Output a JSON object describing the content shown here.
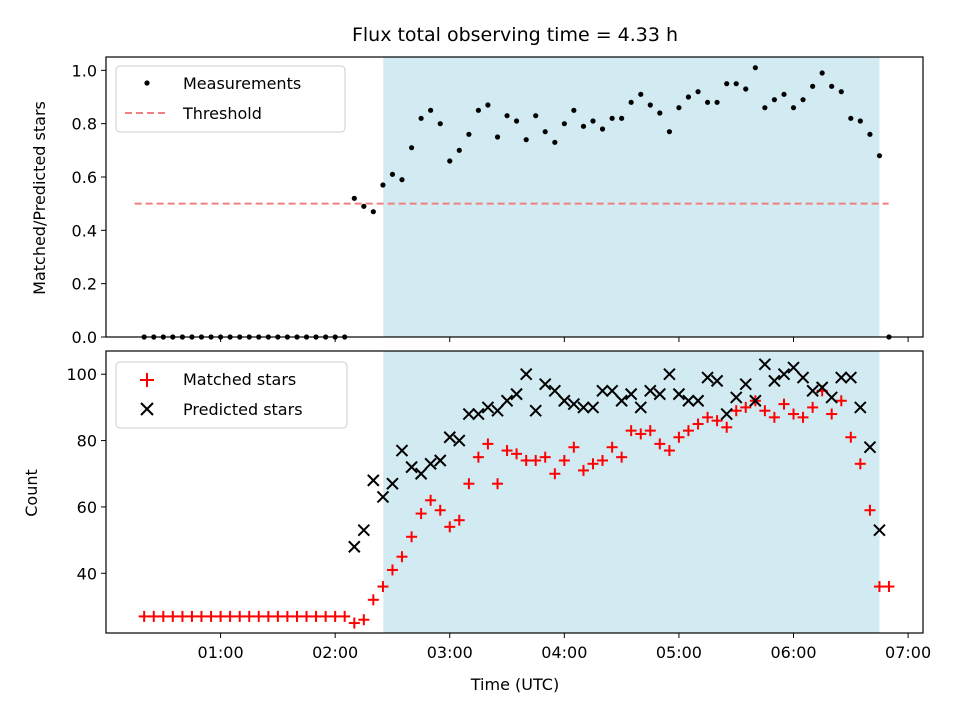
{
  "chart_data": [
    {
      "type": "scatter",
      "title": "Flux total observing time = 4.33 h",
      "ylabel": "Matched/Predicted stars",
      "ylim": [
        0,
        1.05
      ],
      "yticks": [
        "0.0",
        "0.2",
        "0.4",
        "0.6",
        "0.8",
        "1.0"
      ],
      "x_hours": [
        0.333,
        0.417,
        0.5,
        0.583,
        0.667,
        0.75,
        0.833,
        0.917,
        1.0,
        1.083,
        1.167,
        1.25,
        1.333,
        1.417,
        1.5,
        1.583,
        1.667,
        1.75,
        1.833,
        1.917,
        2.0,
        2.083,
        2.167,
        2.25,
        2.333,
        2.417,
        2.5,
        2.583,
        2.667,
        2.75,
        2.833,
        2.917,
        3.0,
        3.083,
        3.167,
        3.25,
        3.333,
        3.417,
        3.5,
        3.583,
        3.667,
        3.75,
        3.833,
        3.917,
        4.0,
        4.083,
        4.167,
        4.25,
        4.333,
        4.417,
        4.5,
        4.583,
        4.667,
        4.75,
        4.833,
        4.917,
        5.0,
        5.083,
        5.167,
        5.25,
        5.333,
        5.417,
        5.5,
        5.583,
        5.667,
        5.75,
        5.833,
        5.917,
        6.0,
        6.083,
        6.167,
        6.25,
        6.333,
        6.417,
        6.5,
        6.583,
        6.667,
        6.75,
        6.833
      ],
      "series": [
        {
          "name": "Measurements",
          "marker": "dot",
          "color": "#000000",
          "values": [
            0,
            0,
            0,
            0,
            0,
            0,
            0,
            0,
            0,
            0,
            0,
            0,
            0,
            0,
            0,
            0,
            0,
            0,
            0,
            0,
            0,
            0,
            0.52,
            0.49,
            0.47,
            0.57,
            0.61,
            0.59,
            0.71,
            0.82,
            0.85,
            0.8,
            0.66,
            0.7,
            0.76,
            0.85,
            0.87,
            0.75,
            0.83,
            0.81,
            0.74,
            0.83,
            0.77,
            0.73,
            0.8,
            0.85,
            0.79,
            0.81,
            0.78,
            0.82,
            0.82,
            0.88,
            0.91,
            0.87,
            0.84,
            0.77,
            0.86,
            0.9,
            0.92,
            0.88,
            0.88,
            0.95,
            0.95,
            0.93,
            1.01,
            0.86,
            0.89,
            0.91,
            0.86,
            0.89,
            0.94,
            0.99,
            0.94,
            0.92,
            0.82,
            0.81,
            0.76,
            0.68,
            0.0
          ]
        },
        {
          "name": "Threshold",
          "style": "dashed",
          "color": "#f08080",
          "x_hours": [
            0.25,
            6.83
          ],
          "values": [
            0.5,
            0.5
          ]
        }
      ],
      "legend": "top-left"
    },
    {
      "type": "scatter",
      "ylabel": "Count",
      "xlabel": "Time (UTC)",
      "ylim": [
        22,
        107
      ],
      "yticks": [
        "40",
        "60",
        "80",
        "100"
      ],
      "xticks": [
        "01:00",
        "02:00",
        "03:00",
        "04:00",
        "05:00",
        "06:00",
        "07:00"
      ],
      "xlim_hours": [
        0.0,
        7.13
      ],
      "shaded_region_hours": [
        2.42,
        6.75
      ],
      "shade_color": "#add8e6",
      "series": [
        {
          "name": "Matched stars",
          "marker": "plus",
          "color": "#ff0000",
          "x_hours": [
            0.333,
            0.417,
            0.5,
            0.583,
            0.667,
            0.75,
            0.833,
            0.917,
            1.0,
            1.083,
            1.167,
            1.25,
            1.333,
            1.417,
            1.5,
            1.583,
            1.667,
            1.75,
            1.833,
            1.917,
            2.0,
            2.083,
            2.167,
            2.25,
            2.333,
            2.417,
            2.5,
            2.583,
            2.667,
            2.75,
            2.833,
            2.917,
            3.0,
            3.083,
            3.167,
            3.25,
            3.333,
            3.417,
            3.5,
            3.583,
            3.667,
            3.75,
            3.833,
            3.917,
            4.0,
            4.083,
            4.167,
            4.25,
            4.333,
            4.417,
            4.5,
            4.583,
            4.667,
            4.75,
            4.833,
            4.917,
            5.0,
            5.083,
            5.167,
            5.25,
            5.333,
            5.417,
            5.5,
            5.583,
            5.667,
            5.75,
            5.833,
            5.917,
            6.0,
            6.083,
            6.167,
            6.25,
            6.333,
            6.417,
            6.5,
            6.583,
            6.667,
            6.75,
            6.833
          ],
          "values": [
            27,
            27,
            27,
            27,
            27,
            27,
            27,
            27,
            27,
            27,
            27,
            27,
            27,
            27,
            27,
            27,
            27,
            27,
            27,
            27,
            27,
            27,
            25,
            26,
            32,
            36,
            41,
            45,
            51,
            58,
            62,
            59,
            54,
            56,
            67,
            75,
            79,
            67,
            77,
            76,
            74,
            74,
            75,
            70,
            74,
            78,
            71,
            73,
            74,
            78,
            75,
            83,
            82,
            83,
            79,
            77,
            81,
            83,
            85,
            87,
            86,
            84,
            89,
            90,
            92,
            89,
            87,
            91,
            88,
            87,
            90,
            95,
            88,
            92,
            81,
            73,
            59,
            36,
            36
          ]
        },
        {
          "name": "Predicted stars",
          "marker": "x",
          "color": "#000000",
          "x_hours": [
            2.167,
            2.25,
            2.333,
            2.417,
            2.5,
            2.583,
            2.667,
            2.75,
            2.833,
            2.917,
            3.0,
            3.083,
            3.167,
            3.25,
            3.333,
            3.417,
            3.5,
            3.583,
            3.667,
            3.75,
            3.833,
            3.917,
            4.0,
            4.083,
            4.167,
            4.25,
            4.333,
            4.417,
            4.5,
            4.583,
            4.667,
            4.75,
            4.833,
            4.917,
            5.0,
            5.083,
            5.167,
            5.25,
            5.333,
            5.417,
            5.5,
            5.583,
            5.667,
            5.75,
            5.833,
            5.917,
            6.0,
            6.083,
            6.167,
            6.25,
            6.333,
            6.417,
            6.5,
            6.583,
            6.667,
            6.75
          ],
          "values": [
            48,
            53,
            68,
            63,
            67,
            77,
            72,
            70,
            73,
            74,
            81,
            80,
            88,
            88,
            90,
            89,
            92,
            94,
            100,
            89,
            97,
            95,
            92,
            91,
            90,
            90,
            95,
            95,
            92,
            94,
            90,
            95,
            94,
            100,
            94,
            92,
            92,
            99,
            98,
            88,
            93,
            97,
            92,
            103,
            98,
            100,
            102,
            99,
            95,
            96,
            93,
            99,
            99,
            90,
            78,
            53
          ]
        }
      ],
      "legend": "top-left"
    }
  ]
}
